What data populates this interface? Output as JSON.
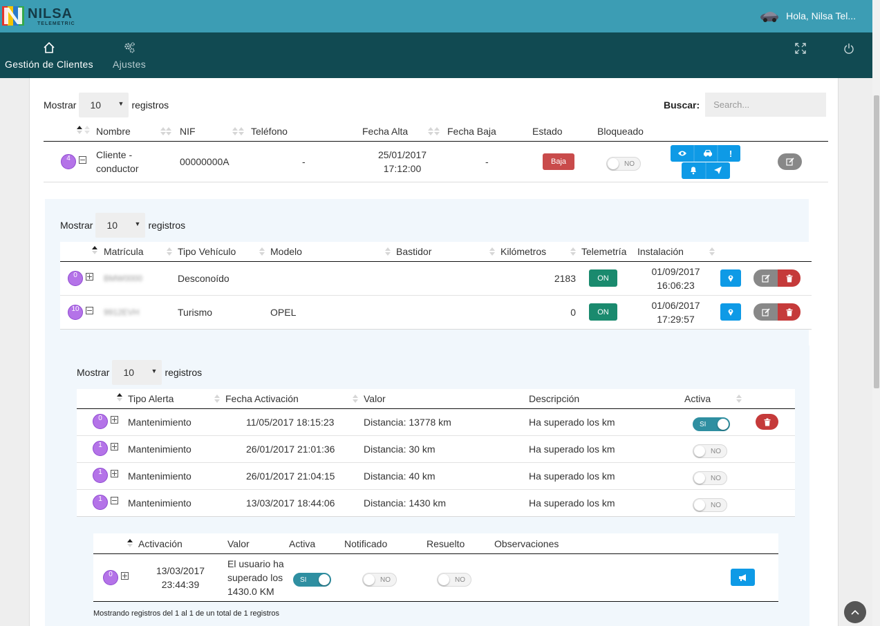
{
  "header": {
    "logo_text": "NILSA",
    "logo_sub": "TELEMETRIC",
    "greeting": "Hola, Nilsa Tel..."
  },
  "nav": {
    "items": [
      {
        "label": "Gestión de Clientes",
        "icon": "home-icon"
      },
      {
        "label": "Ajustes",
        "icon": "gears-icon"
      }
    ],
    "right_icons": [
      "fullscreen-icon",
      "power-icon"
    ]
  },
  "clients": {
    "length": {
      "prefix": "Mostrar",
      "value": "10",
      "suffix": "registros"
    },
    "search": {
      "label": "Buscar:",
      "placeholder": "Search..."
    },
    "columns": [
      "Nombre",
      "NIF",
      "Teléfono",
      "Fecha Alta",
      "Fecha Baja",
      "Estado",
      "Bloqueado"
    ],
    "row": {
      "count": "4",
      "nombre": "Cliente - conductor",
      "nombre_l1": "Cliente -",
      "nombre_l2": "conductor",
      "nif": "00000000A",
      "telefono": "-",
      "fecha_alta_date": "25/01/2017",
      "fecha_alta_time": "17:12:00",
      "fecha_baja": "-",
      "estado": "Baja",
      "bloqueado": "NO"
    }
  },
  "vehicles": {
    "length": {
      "prefix": "Mostrar",
      "value": "10",
      "suffix": "registros"
    },
    "columns": [
      "Matrícula",
      "Tipo Vehículo",
      "Modelo",
      "Bastidor",
      "Kilómetros",
      "Telemetría",
      "Instalación"
    ],
    "rows": [
      {
        "count": "0",
        "matricula": "BMW0000",
        "tipo": "Desconoído",
        "modelo": "",
        "bastidor": "",
        "km": "2183",
        "telemetria": "ON",
        "inst_date": "01/09/2017",
        "inst_time": "16:06:23"
      },
      {
        "count": "10",
        "matricula": "9912EVH",
        "tipo": "Turismo",
        "modelo": "OPEL",
        "bastidor": "",
        "km": "0",
        "telemetria": "ON",
        "inst_date": "01/06/2017",
        "inst_time": "17:29:57"
      }
    ]
  },
  "alerts": {
    "length": {
      "prefix": "Mostrar",
      "value": "10",
      "suffix": "registros"
    },
    "columns": [
      "Tipo Alerta",
      "Fecha Activación",
      "Valor",
      "Descripción",
      "Activa"
    ],
    "rows": [
      {
        "count": "0",
        "tipo": "Mantenimiento",
        "fecha": "11/05/2017 18:15:23",
        "valor": "Distancia: 13778 km",
        "descripcion": "Ha superado los km",
        "activa": "SI"
      },
      {
        "count": "1",
        "tipo": "Mantenimiento",
        "fecha": "26/01/2017 21:01:36",
        "valor": "Distancia: 30 km",
        "descripcion": "Ha superado los km",
        "activa": "NO"
      },
      {
        "count": "1",
        "tipo": "Mantenimiento",
        "fecha": "26/01/2017 21:04:15",
        "valor": "Distancia: 40 km",
        "descripcion": "Ha superado los km",
        "activa": "NO"
      },
      {
        "count": "1",
        "tipo": "Mantenimiento",
        "fecha": "13/03/2017 18:44:06",
        "valor": "Distancia: 1430 km",
        "descripcion": "Ha superado los km",
        "activa": "NO"
      }
    ]
  },
  "activations": {
    "columns": [
      "Activación",
      "Valor",
      "Activa",
      "Notificado",
      "Resuelto",
      "Observaciones"
    ],
    "row": {
      "count": "0",
      "act_date": "13/03/2017",
      "act_time": "23:44:39",
      "valor_l1": "El usuario ha",
      "valor_l2": "superado los",
      "valor_l3": "1430.0 KM",
      "activa": "SI",
      "notificado": "NO",
      "resuelto": "NO"
    },
    "info": "Mostrando registros del 1 al 1 de un total de 1 registros"
  },
  "colors": {
    "topbar": "#3c9db4",
    "navbar": "#114a52",
    "blue_button": "#0e9ae6",
    "red_button": "#c53a3a",
    "green_on": "#1a8a6e",
    "badge": "#b473e8"
  }
}
